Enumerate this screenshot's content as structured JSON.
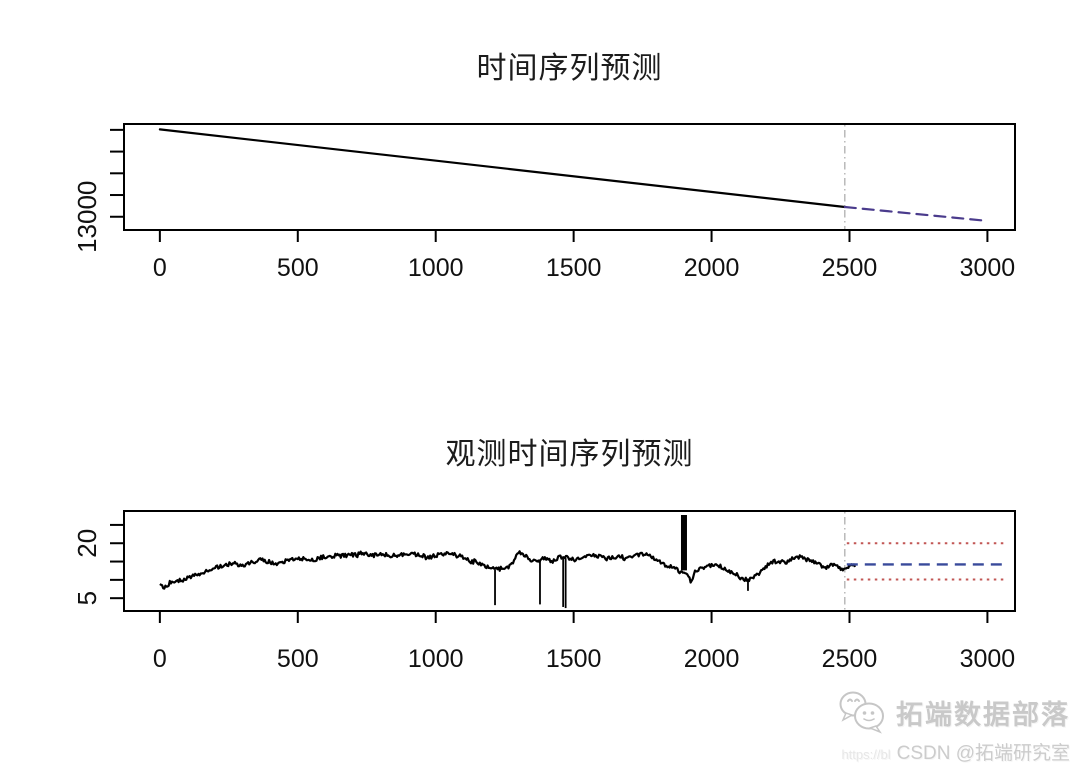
{
  "page": {
    "background": "#ffffff"
  },
  "watermark": {
    "logo_icon": "wechat-bubbles-icon",
    "brand": "拓端数据部落",
    "url_fragment": "https://bl",
    "credit": "CSDN @拓端研究室",
    "brand_color": "#c9c9c9"
  },
  "chart_data": [
    {
      "type": "line",
      "title": "时间序列预测",
      "xlabel": "",
      "ylabel": "",
      "grid": false,
      "legend_position": "none",
      "xlim": [
        -130,
        3100
      ],
      "ylim": [
        12390,
        17270
      ],
      "x_ticks": [
        0,
        500,
        1000,
        1500,
        2000,
        2500,
        3000
      ],
      "y_ticks": [
        13000,
        14000,
        15000,
        16000,
        17000
      ],
      "y_tick_labels": [
        "13000",
        "",
        "",
        "",
        ""
      ],
      "axis_color": "#000000",
      "series": [
        {
          "name": "trend-observed",
          "style": "solid",
          "color": "#000000",
          "points": [
            [
              0,
              17020
            ],
            [
              2483,
              13450
            ]
          ]
        },
        {
          "name": "trend-forecast",
          "style": "dashed",
          "color": "#4a3b8c",
          "points": [
            [
              2483,
              13450
            ],
            [
              3000,
              12810
            ]
          ]
        }
      ],
      "forecast_origin_line": {
        "x": 2483,
        "color": "#b4b4b4",
        "style": "dashdot"
      }
    },
    {
      "type": "line",
      "title": "观测时间序列预测",
      "xlabel": "",
      "ylabel": "",
      "grid": false,
      "legend_position": "none",
      "xlim": [
        -130,
        3100
      ],
      "ylim": [
        1.5,
        28.8
      ],
      "x_ticks": [
        0,
        500,
        1000,
        1500,
        2000,
        2500,
        3000
      ],
      "y_ticks": [
        5,
        10,
        15,
        20,
        25
      ],
      "y_tick_labels": [
        "5",
        "",
        "",
        "20",
        ""
      ],
      "axis_color": "#000000",
      "observed_series": {
        "name": "observed-series",
        "color": "#000000",
        "x_start": 0,
        "x_end": 2520,
        "noise_amplitude": 0.55,
        "step": 4,
        "anchors": [
          [
            0,
            8.8
          ],
          [
            15,
            8.1
          ],
          [
            40,
            9.3
          ],
          [
            80,
            10.2
          ],
          [
            130,
            11.6
          ],
          [
            180,
            12.9
          ],
          [
            230,
            13.7
          ],
          [
            270,
            14.7
          ],
          [
            300,
            14.1
          ],
          [
            340,
            15.1
          ],
          [
            380,
            15.4
          ],
          [
            420,
            14.8
          ],
          [
            460,
            15.2
          ],
          [
            500,
            15.7
          ],
          [
            540,
            15.3
          ],
          [
            580,
            16.1
          ],
          [
            620,
            16.5
          ],
          [
            660,
            16.2
          ],
          [
            700,
            16.8
          ],
          [
            740,
            17.0
          ],
          [
            780,
            16.6
          ],
          [
            820,
            16.9
          ],
          [
            860,
            16.5
          ],
          [
            900,
            17.0
          ],
          [
            940,
            16.6
          ],
          [
            980,
            16.3
          ],
          [
            1020,
            16.7
          ],
          [
            1060,
            17.0
          ],
          [
            1100,
            16.1
          ],
          [
            1140,
            15.0
          ],
          [
            1170,
            13.8
          ],
          [
            1200,
            13.0
          ],
          [
            1230,
            12.6
          ],
          [
            1255,
            13.2
          ],
          [
            1285,
            15.4
          ],
          [
            1300,
            17.2
          ],
          [
            1330,
            16.4
          ],
          [
            1360,
            15.3
          ],
          [
            1390,
            15.7
          ],
          [
            1420,
            15.2
          ],
          [
            1450,
            15.8
          ],
          [
            1480,
            16.0
          ],
          [
            1510,
            15.5
          ],
          [
            1545,
            16.3
          ],
          [
            1580,
            16.7
          ],
          [
            1615,
            16.1
          ],
          [
            1650,
            16.5
          ],
          [
            1685,
            16.2
          ],
          [
            1720,
            16.6
          ],
          [
            1755,
            16.9
          ],
          [
            1780,
            16.2
          ],
          [
            1810,
            15.3
          ],
          [
            1830,
            14.2
          ],
          [
            1850,
            13.6
          ],
          [
            1870,
            13.0
          ],
          [
            1885,
            12.5
          ],
          [
            1905,
            12.6
          ],
          [
            1915,
            11.9
          ],
          [
            1925,
            9.0
          ],
          [
            1940,
            12.6
          ],
          [
            1960,
            13.2
          ],
          [
            1990,
            13.5
          ],
          [
            2020,
            13.8
          ],
          [
            2050,
            13.0
          ],
          [
            2080,
            11.6
          ],
          [
            2110,
            10.4
          ],
          [
            2135,
            10.3
          ],
          [
            2160,
            11.2
          ],
          [
            2190,
            12.8
          ],
          [
            2215,
            14.5
          ],
          [
            2240,
            15.3
          ],
          [
            2270,
            15.0
          ],
          [
            2300,
            15.7
          ],
          [
            2330,
            16.2
          ],
          [
            2355,
            14.9
          ],
          [
            2385,
            14.0
          ],
          [
            2415,
            13.6
          ],
          [
            2445,
            14.2
          ],
          [
            2470,
            12.9
          ],
          [
            2495,
            14.0
          ],
          [
            2520,
            13.8
          ]
        ]
      },
      "spikes": [
        {
          "x": 1215,
          "to": 3.1,
          "width": 1.8
        },
        {
          "x": 1378,
          "to": 3.3,
          "width": 1.8
        },
        {
          "x": 1462,
          "to": 2.6,
          "width": 1.8
        },
        {
          "x": 1471,
          "to": 2.3,
          "width": 1.8
        },
        {
          "x": 1900,
          "to": 27.7,
          "width": 6
        },
        {
          "x": 2132,
          "to": 7.0,
          "width": 1.8
        }
      ],
      "forecast": {
        "x_start": 2483,
        "x_end": 3070,
        "mean": {
          "value": 14.2,
          "color": "#394a9b",
          "style": "dashed"
        },
        "upper": {
          "value": 20.0,
          "color": "#c25755",
          "style": "dotted"
        },
        "lower": {
          "value": 10.1,
          "color": "#c25755",
          "style": "dotted"
        }
      },
      "forecast_origin_line": {
        "x": 2483,
        "color": "#b4b4b4",
        "style": "dashdot"
      }
    }
  ]
}
